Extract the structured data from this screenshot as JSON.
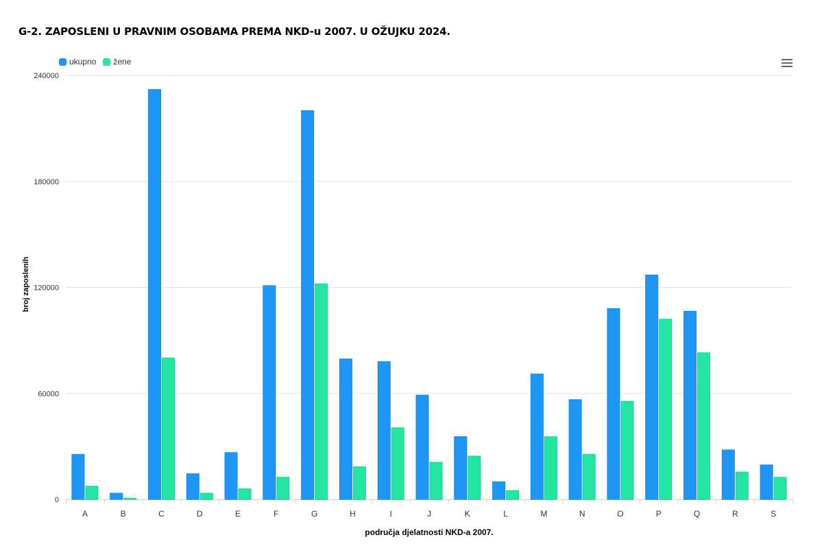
{
  "title": "G-2. ZAPOSLENI U PRAVNIM OSOBAMA PREMA NKD-u 2007. U OŽUJKU 2024.",
  "menu_icon": "hamburger-menu-icon",
  "chart_data": {
    "type": "bar",
    "categories": [
      "A",
      "B",
      "C",
      "D",
      "E",
      "F",
      "G",
      "H",
      "I",
      "J",
      "K",
      "L",
      "M",
      "N",
      "O",
      "P",
      "Q",
      "R",
      "S"
    ],
    "series": [
      {
        "name": "ukupno",
        "color": "#1e96f5",
        "values": [
          25500,
          3500,
          232000,
          14500,
          26500,
          121000,
          220000,
          79500,
          78000,
          59000,
          35500,
          10000,
          71000,
          56500,
          108000,
          127000,
          106500,
          28000,
          19500
        ]
      },
      {
        "name": "žene",
        "color": "#22e6a2",
        "values": [
          7500,
          700,
          80000,
          3500,
          6000,
          12500,
          122000,
          18500,
          40500,
          21000,
          24500,
          5000,
          35500,
          25500,
          55500,
          102000,
          83000,
          15500,
          12500
        ]
      }
    ],
    "xlabel": "područja djelatnosti NKD-a 2007.",
    "ylabel": "broj zaposlenih",
    "ylim": [
      0,
      240000
    ],
    "yticks": [
      "0",
      "60000",
      "120000",
      "180000",
      "240000"
    ],
    "grid": true,
    "legend_position": "top-left"
  }
}
